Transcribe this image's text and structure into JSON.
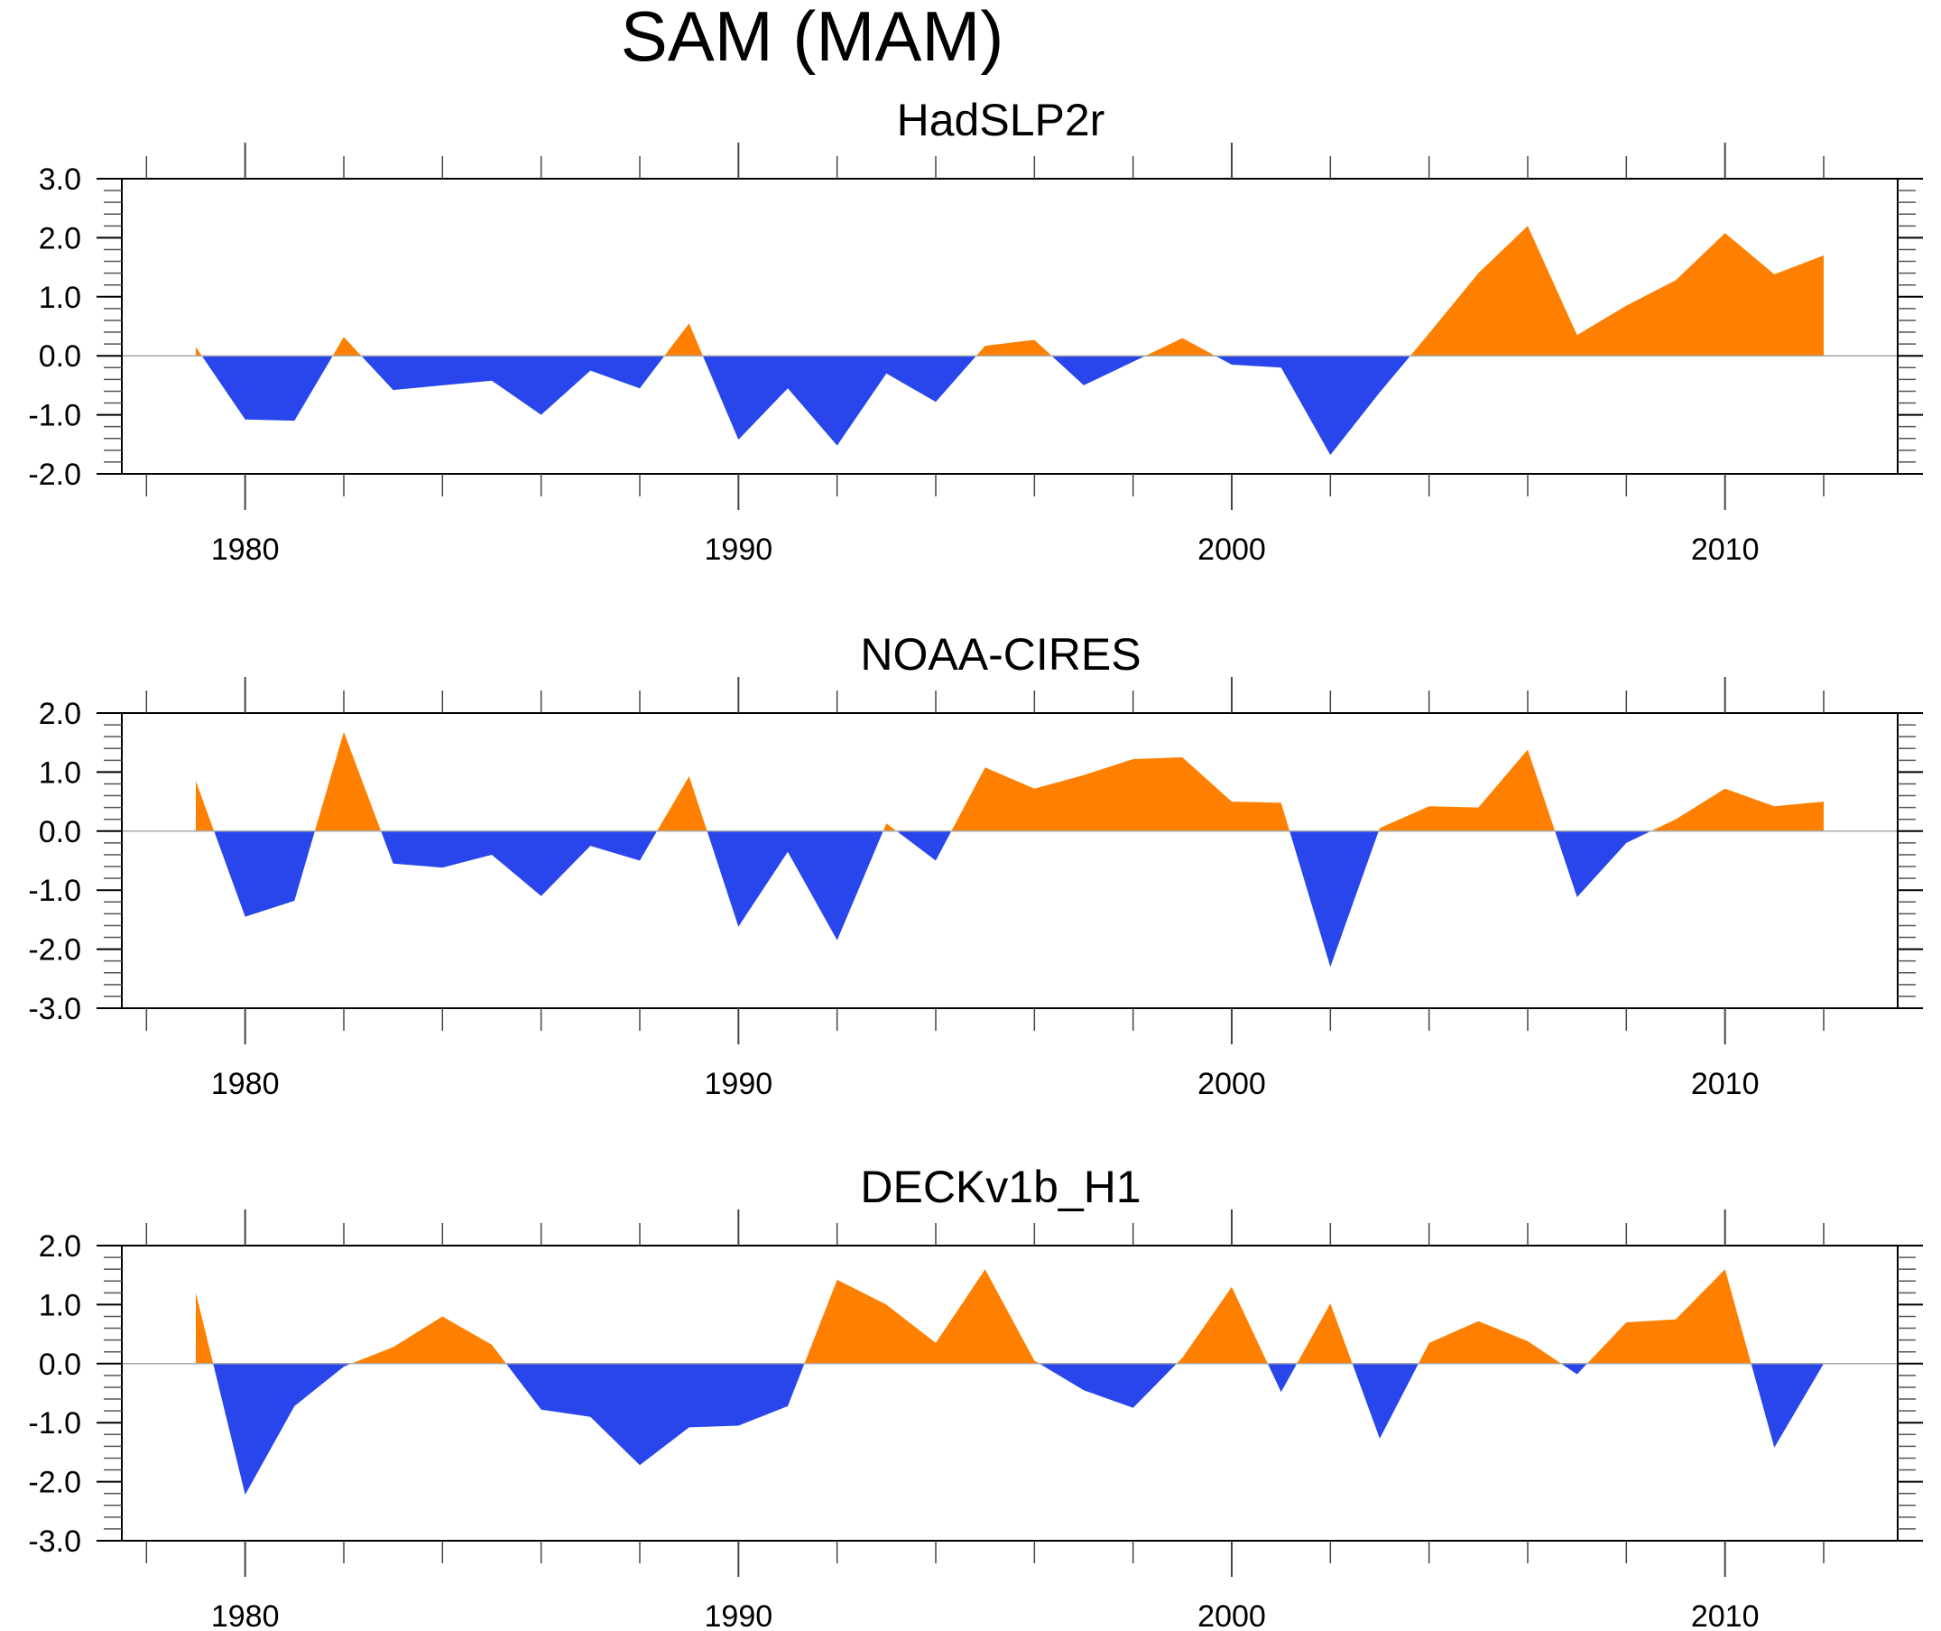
{
  "title": "SAM (MAM)",
  "colors": {
    "positive": "#ff8000",
    "negative": "#2846ec",
    "axis": "#000000",
    "zero_line": "#aaaaaa"
  },
  "chart_data": [
    {
      "type": "area",
      "title": "HadSLP2r",
      "xlabel": "",
      "ylabel": "",
      "xlim": [
        1977.5,
        2013.5
      ],
      "ylim": [
        -2.0,
        3.0
      ],
      "yticks": [
        "-2.0",
        "-1.0",
        "0.0",
        "1.0",
        "2.0",
        "3.0"
      ],
      "ytick_values": [
        -2,
        -1,
        0,
        1,
        2,
        3
      ],
      "xticks": [
        "1980",
        "1990",
        "2000",
        "2010"
      ],
      "xtick_values": [
        1980,
        1990,
        2000,
        2010
      ],
      "x": [
        1979,
        1980,
        1981,
        1982,
        1983,
        1984,
        1985,
        1986,
        1987,
        1988,
        1989,
        1990,
        1991,
        1992,
        1993,
        1994,
        1995,
        1996,
        1997,
        1998,
        1999,
        2000,
        2001,
        2002,
        2003,
        2004,
        2005,
        2006,
        2007,
        2008,
        2009,
        2010,
        2011,
        2012
      ],
      "values": [
        0.15,
        -1.08,
        -1.1,
        0.32,
        -0.58,
        -0.5,
        -0.42,
        -1.0,
        -0.25,
        -0.55,
        0.55,
        -1.42,
        -0.55,
        -1.52,
        -0.3,
        -0.78,
        0.17,
        0.27,
        -0.5,
        -0.1,
        0.3,
        -0.15,
        -0.2,
        -1.68,
        -0.62,
        0.38,
        1.4,
        2.2,
        0.35,
        0.85,
        1.28,
        2.08,
        1.38,
        1.7
      ],
      "grid": false
    },
    {
      "type": "area",
      "title": "NOAA-CIRES",
      "xlabel": "",
      "ylabel": "",
      "xlim": [
        1977.5,
        2013.5
      ],
      "ylim": [
        -3.0,
        2.0
      ],
      "yticks": [
        "-3.0",
        "-2.0",
        "-1.0",
        "0.0",
        "1.0",
        "2.0"
      ],
      "ytick_values": [
        -3,
        -2,
        -1,
        0,
        1,
        2
      ],
      "xticks": [
        "1980",
        "1990",
        "2000",
        "2010"
      ],
      "xtick_values": [
        1980,
        1990,
        2000,
        2010
      ],
      "x": [
        1979,
        1980,
        1981,
        1982,
        1983,
        1984,
        1985,
        1986,
        1987,
        1988,
        1989,
        1990,
        1991,
        1992,
        1993,
        1994,
        1995,
        1996,
        1997,
        1998,
        1999,
        2000,
        2001,
        2002,
        2003,
        2004,
        2005,
        2006,
        2007,
        2008,
        2009,
        2010,
        2011,
        2012
      ],
      "values": [
        0.85,
        -1.45,
        -1.18,
        1.68,
        -0.55,
        -0.62,
        -0.4,
        -1.1,
        -0.25,
        -0.5,
        0.93,
        -1.62,
        -0.35,
        -1.85,
        0.13,
        -0.5,
        1.08,
        0.72,
        0.95,
        1.22,
        1.25,
        0.5,
        0.48,
        -2.3,
        0.05,
        0.42,
        0.4,
        1.38,
        -1.12,
        -0.2,
        0.2,
        0.72,
        0.42,
        0.5
      ],
      "grid": false
    },
    {
      "type": "area",
      "title": "DECKv1b_H1",
      "xlabel": "",
      "ylabel": "",
      "xlim": [
        1977.5,
        2013.5
      ],
      "ylim": [
        -3.0,
        2.0
      ],
      "yticks": [
        "-3.0",
        "-2.0",
        "-1.0",
        "0.0",
        "1.0",
        "2.0"
      ],
      "ytick_values": [
        -3,
        -2,
        -1,
        0,
        1,
        2
      ],
      "xticks": [
        "1980",
        "1990",
        "2000",
        "2010"
      ],
      "xtick_values": [
        1980,
        1990,
        2000,
        2010
      ],
      "x": [
        1979,
        1980,
        1981,
        1982,
        1983,
        1984,
        1985,
        1986,
        1987,
        1988,
        1989,
        1990,
        1991,
        1992,
        1993,
        1994,
        1995,
        1996,
        1997,
        1998,
        1999,
        2000,
        2001,
        2002,
        2003,
        2004,
        2005,
        2006,
        2007,
        2008,
        2009,
        2010,
        2011,
        2012
      ],
      "values": [
        1.2,
        -2.22,
        -0.72,
        -0.05,
        0.28,
        0.8,
        0.32,
        -0.78,
        -0.9,
        -1.72,
        -1.08,
        -1.05,
        -0.72,
        1.42,
        1.0,
        0.35,
        1.6,
        0.05,
        -0.45,
        -0.75,
        0.1,
        1.3,
        -0.48,
        1.02,
        -1.27,
        0.35,
        0.72,
        0.38,
        -0.18,
        0.7,
        0.75,
        1.6,
        -1.42,
        0.0
      ],
      "grid": false
    }
  ]
}
